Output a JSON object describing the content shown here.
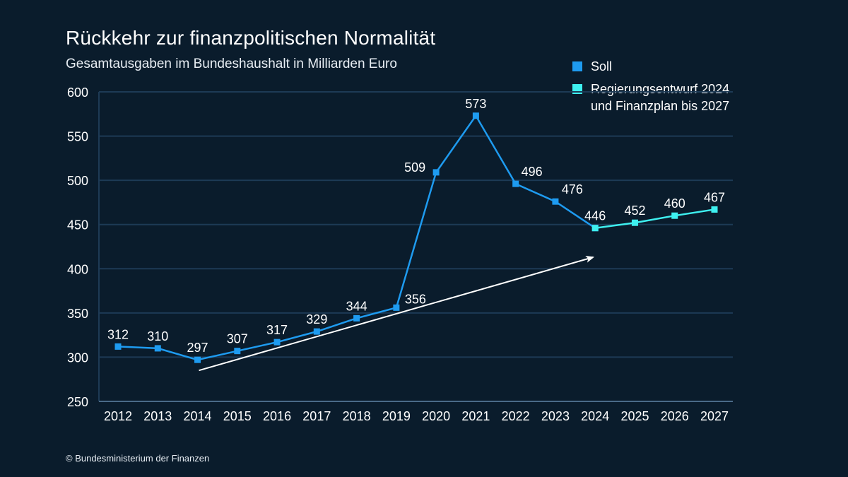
{
  "title": "Rückkehr zur finanzpolitischen Normalität",
  "subtitle": "Gesamtausgaben im Bundeshaushalt in Milliarden Euro",
  "footer": "© Bundesministerium der Finanzen",
  "legend": [
    {
      "label": "Soll",
      "color": "#1e9bf0"
    },
    {
      "label": "Regierungsentwurf 2024\nund Finanzplan bis 2027",
      "color": "#3ef0f0"
    }
  ],
  "chart_data": {
    "type": "line",
    "title": "Rückkehr zur finanzpolitischen Normalität",
    "subtitle": "Gesamtausgaben im Bundeshaushalt in Milliarden Euro",
    "xlabel": "",
    "ylabel": "",
    "categories": [
      "2012",
      "2013",
      "2014",
      "2015",
      "2016",
      "2017",
      "2018",
      "2019",
      "2020",
      "2021",
      "2022",
      "2023",
      "2024",
      "2025",
      "2026",
      "2027"
    ],
    "ylim": [
      250,
      600
    ],
    "yticks": [
      250,
      300,
      350,
      400,
      450,
      500,
      550,
      600
    ],
    "series": [
      {
        "name": "Soll",
        "color": "#1e9bf0",
        "x": [
          "2012",
          "2013",
          "2014",
          "2015",
          "2016",
          "2017",
          "2018",
          "2019",
          "2020",
          "2021",
          "2022",
          "2023",
          "2024"
        ],
        "values": [
          312,
          310,
          297,
          307,
          317,
          329,
          344,
          356,
          509,
          573,
          496,
          476,
          446
        ]
      },
      {
        "name": "Regierungsentwurf 2024 und Finanzplan bis 2027",
        "color": "#3ef0f0",
        "x": [
          "2024",
          "2025",
          "2026",
          "2027"
        ],
        "values": [
          446,
          452,
          460,
          467
        ]
      }
    ],
    "data_labels": [
      {
        "x": "2012",
        "value": 312
      },
      {
        "x": "2013",
        "value": 310
      },
      {
        "x": "2014",
        "value": 297
      },
      {
        "x": "2015",
        "value": 307
      },
      {
        "x": "2016",
        "value": 317
      },
      {
        "x": "2017",
        "value": 329
      },
      {
        "x": "2018",
        "value": 344
      },
      {
        "x": "2019",
        "value": 356
      },
      {
        "x": "2020",
        "value": 509
      },
      {
        "x": "2021",
        "value": 573
      },
      {
        "x": "2022",
        "value": 496
      },
      {
        "x": "2023",
        "value": 476
      },
      {
        "x": "2024",
        "value": 446
      },
      {
        "x": "2025",
        "value": 452
      },
      {
        "x": "2026",
        "value": 460
      },
      {
        "x": "2027",
        "value": 467
      }
    ],
    "annotations": [
      {
        "type": "trend-arrow",
        "from": {
          "x": "2014",
          "value": 285
        },
        "to": {
          "x": "2024",
          "value": 413
        },
        "color": "#ffffff"
      }
    ],
    "grid": true,
    "legend_position": "top-right"
  }
}
